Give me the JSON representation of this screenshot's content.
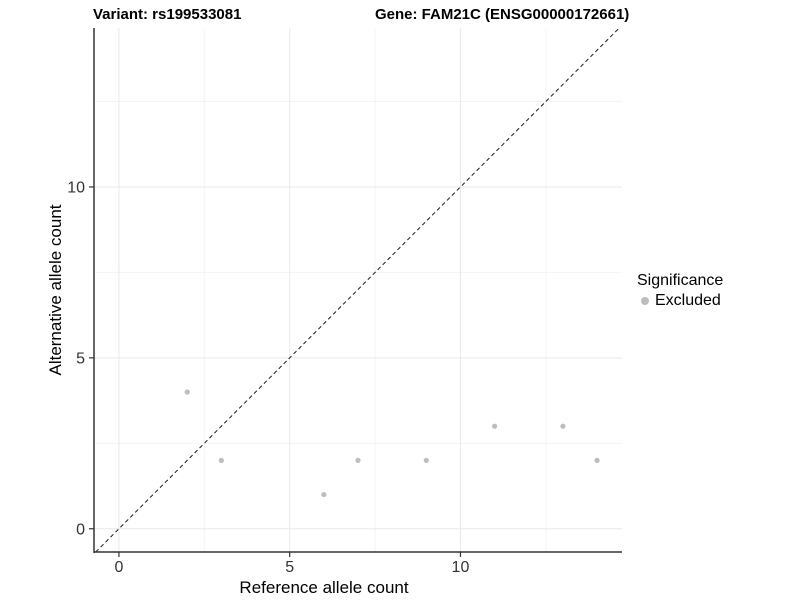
{
  "header": {
    "title_left": "Variant: rs199533081",
    "title_right": "Gene: FAM21C (ENSG00000172661)"
  },
  "chart_data": {
    "type": "scatter",
    "title_left": "Variant: rs199533081",
    "title_right": "Gene: FAM21C (ENSG00000172661)",
    "xlabel": "Reference allele count",
    "ylabel": "Alternative allele count",
    "xlim": [
      -0.73,
      14.73
    ],
    "ylim": [
      -0.68,
      14.65
    ],
    "x_ticks": [
      0,
      5,
      10
    ],
    "y_ticks": [
      0,
      5,
      10
    ],
    "x_minor_gridlines": [
      2.5,
      7.5,
      12.5
    ],
    "y_minor_gridlines": [
      2.5,
      7.5,
      12.5
    ],
    "grid": true,
    "series": [
      {
        "name": "Excluded",
        "color": "#bdbdbd",
        "points": [
          [
            2,
            4
          ],
          [
            3,
            2
          ],
          [
            6,
            1
          ],
          [
            7,
            2
          ],
          [
            9,
            2
          ],
          [
            11,
            3
          ],
          [
            13,
            3
          ],
          [
            14,
            2
          ]
        ]
      }
    ],
    "identity_line": {
      "slope": 1,
      "intercept": 0,
      "style": "dashed",
      "color": "#1a1a1a"
    },
    "legend": {
      "position": "right",
      "title": "Significance",
      "items": [
        {
          "label": "Excluded",
          "color": "#bdbdbd"
        }
      ]
    },
    "colors": {
      "background": "#ffffff",
      "major_gridline": "#e9e9e9",
      "minor_gridline": "#f4f4f4",
      "axis_line": "#333333",
      "tick_text": "#333333",
      "point": "#bdbdbd"
    }
  }
}
